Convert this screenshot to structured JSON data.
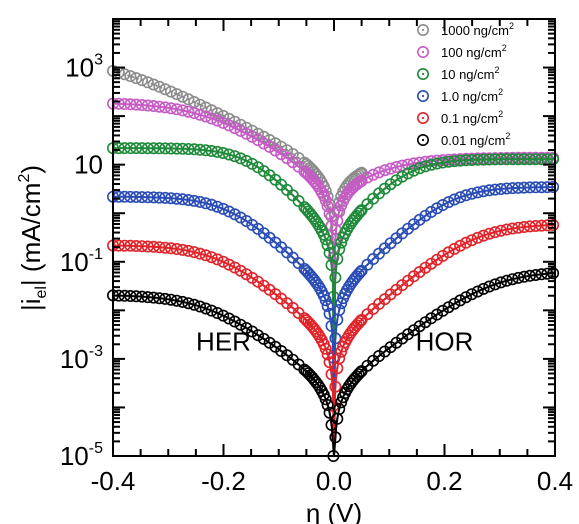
{
  "chart_data": {
    "type": "scatter",
    "title": "",
    "xlabel": "η (V)",
    "ylabel": {
      "prefix": "|i",
      "sub": "el",
      "mid": "| (mA/cm",
      "sup": "2",
      "suffix": ")"
    },
    "xlim": [
      -0.4,
      0.4
    ],
    "ylim": [
      1e-05,
      10000
    ],
    "yscale": "log",
    "grid": false,
    "legend_position": "top-right",
    "x_ticks": [
      {
        "v": -0.4,
        "label": "-0.4"
      },
      {
        "v": -0.2,
        "label": "-0.2"
      },
      {
        "v": 0.0,
        "label": "0.0"
      },
      {
        "v": 0.2,
        "label": "0.2"
      },
      {
        "v": 0.4,
        "label": "0.4"
      }
    ],
    "y_ticks": [
      {
        "v": 1000,
        "base": "10",
        "exp": "3"
      },
      {
        "v": 10,
        "base": "10",
        "exp": ""
      },
      {
        "v": 0.1,
        "base": "10",
        "exp": "-1"
      },
      {
        "v": 0.001,
        "base": "10",
        "exp": "-3"
      },
      {
        "v": 1e-05,
        "base": "10",
        "exp": "-5"
      }
    ],
    "annotations": [
      {
        "text": "HER",
        "x": -0.2,
        "y": 0.0015
      },
      {
        "text": "HOR",
        "x": 0.2,
        "y": 0.0015
      }
    ],
    "series": [
      {
        "name": "1000 ng/cm",
        "name_sup": "2",
        "color": "#8c8c8c",
        "marker": "open-circle",
        "fit": "dotted-line",
        "hmin": 20,
        "hmax": 1800,
        "i0": 7,
        "alpha": 0.35,
        "v_end": 0.06
      },
      {
        "name": "100 ng/cm",
        "name_sup": "2",
        "color": "#c65bc6",
        "marker": "open-circle",
        "fit": "solid-line",
        "hmin": 14,
        "hmax": 190,
        "i0": 3.5,
        "alpha": 0.45,
        "v_end": 0.4
      },
      {
        "name": "10 ng/cm",
        "name_sup": "2",
        "color": "#1f8a3a",
        "marker": "open-circle",
        "fit": "solid-line",
        "hmin": 13,
        "hmax": 22,
        "i0": 0.35,
        "alpha": 0.7,
        "v_end": 0.4
      },
      {
        "name": "1.0 ng/cm",
        "name_sup": "2",
        "color": "#2a4db5",
        "marker": "open-circle",
        "fit": "solid-line",
        "hmin": 3.5,
        "hmax": 2.2,
        "i0": 0.022,
        "alpha": 0.62,
        "v_end": 0.4
      },
      {
        "name": "0.1 ng/cm",
        "name_sup": "2",
        "color": "#e0242a",
        "marker": "open-circle",
        "fit": "solid-line",
        "hmin": 0.6,
        "hmax": 0.22,
        "i0": 0.0025,
        "alpha": 0.55,
        "v_end": 0.4
      },
      {
        "name": "0.01 ng/cm",
        "name_sup": "2",
        "color": "#000000",
        "marker": "open-circle",
        "fit": "solid-line",
        "hmin": 0.065,
        "hmax": 0.021,
        "i0": 0.00025,
        "alpha": 0.5,
        "v_end": 0.4
      }
    ]
  }
}
